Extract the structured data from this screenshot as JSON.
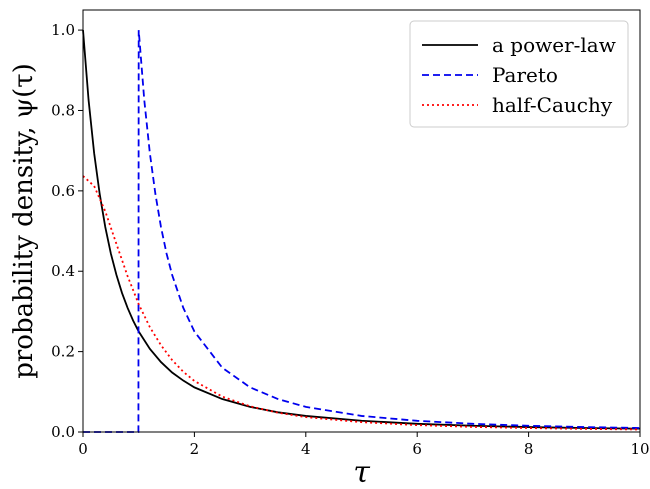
{
  "chart_data": {
    "type": "line",
    "xlabel": "τ",
    "ylabel": "probability density, ψ(τ)",
    "xlim": [
      0,
      10
    ],
    "ylim": [
      0,
      1.05
    ],
    "xticks": [
      0,
      2,
      4,
      6,
      8,
      10
    ],
    "yticks": [
      0.0,
      0.2,
      0.4,
      0.6,
      0.8,
      1.0
    ],
    "xtick_labels": [
      "0",
      "2",
      "4",
      "6",
      "8",
      "10"
    ],
    "ytick_labels": [
      "0.0",
      "0.2",
      "0.4",
      "0.6",
      "0.8",
      "1.0"
    ],
    "grid": false,
    "legend_position": "top-right",
    "series": [
      {
        "name": "a power-law",
        "color": "#000000",
        "dash": "solid",
        "x": [
          0,
          0.1,
          0.2,
          0.3,
          0.4,
          0.5,
          0.6,
          0.7,
          0.8,
          0.9,
          1.0,
          1.2,
          1.4,
          1.6,
          1.8,
          2.0,
          2.5,
          3.0,
          3.5,
          4.0,
          5.0,
          6.0,
          7.0,
          8.0,
          9.0,
          10.0
        ],
        "y": [
          1.0,
          0.826,
          0.694,
          0.592,
          0.51,
          0.444,
          0.391,
          0.346,
          0.309,
          0.277,
          0.25,
          0.207,
          0.174,
          0.148,
          0.128,
          0.111,
          0.082,
          0.0625,
          0.049,
          0.04,
          0.028,
          0.0204,
          0.0156,
          0.0123,
          0.01,
          0.0083
        ]
      },
      {
        "name": "Pareto",
        "color": "#0000ee",
        "dash": "dashed",
        "x": [
          0,
          0.995,
          1.0,
          1.1,
          1.2,
          1.3,
          1.4,
          1.5,
          1.6,
          1.8,
          2.0,
          2.5,
          3.0,
          3.5,
          4.0,
          5.0,
          6.0,
          7.0,
          8.0,
          9.0,
          10.0
        ],
        "y": [
          0,
          0,
          1.0,
          0.826,
          0.694,
          0.592,
          0.51,
          0.444,
          0.391,
          0.309,
          0.25,
          0.16,
          0.111,
          0.082,
          0.0625,
          0.04,
          0.0278,
          0.0204,
          0.0156,
          0.0123,
          0.01
        ]
      },
      {
        "name": "half-Cauchy",
        "color": "#ff0000",
        "dash": "dotted",
        "x": [
          0,
          0.2,
          0.4,
          0.6,
          0.8,
          1.0,
          1.2,
          1.4,
          1.6,
          1.8,
          2.0,
          2.5,
          3.0,
          3.5,
          4.0,
          5.0,
          6.0,
          7.0,
          8.0,
          9.0,
          10.0
        ],
        "y": [
          0.637,
          0.612,
          0.549,
          0.468,
          0.388,
          0.318,
          0.261,
          0.216,
          0.179,
          0.15,
          0.127,
          0.088,
          0.064,
          0.048,
          0.037,
          0.0245,
          0.0172,
          0.0127,
          0.0098,
          0.0078,
          0.0063
        ]
      }
    ]
  }
}
